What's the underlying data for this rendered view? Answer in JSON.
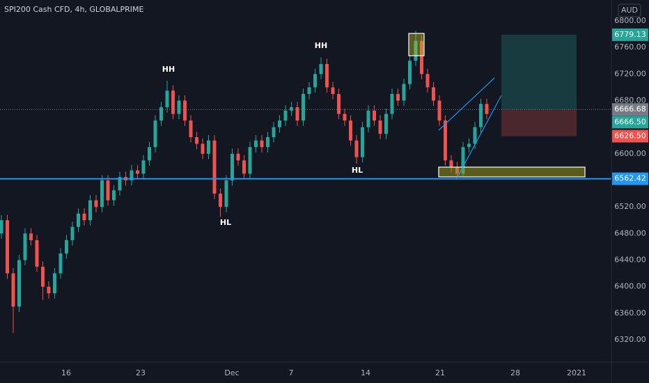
{
  "chart_data": {
    "type": "candlestick",
    "title": "SPI200 Cash CFD, 4h, GLOBALPRIME",
    "currency": "AUD",
    "up_color": "#26a69a",
    "down_color": "#ef5350",
    "open": [
      6480,
      6500,
      6420,
      6370,
      6440,
      6480,
      6470,
      6430,
      6400,
      6390,
      6420,
      6450,
      6470,
      6490,
      6510,
      6500,
      6530,
      6520,
      6560,
      6530,
      6545,
      6565,
      6560,
      6575,
      6570,
      6590,
      6610,
      6650,
      6670,
      6695,
      6660,
      6680,
      6650,
      6625,
      6615,
      6600,
      6620,
      6540,
      6520,
      6560,
      6600,
      6590,
      6570,
      6610,
      6620,
      6610,
      6625,
      6640,
      6650,
      6665,
      6670,
      6650,
      6690,
      6700,
      6720,
      6735,
      6700,
      6690,
      6660,
      6650,
      6620,
      6595,
      6640,
      6665,
      6650,
      6630,
      6660,
      6690,
      6680,
      6705,
      6740,
      6770,
      6720,
      6700,
      6680,
      6650,
      6590,
      6580,
      6570,
      6610,
      6615,
      6640,
      6675
    ],
    "high": [
      6508,
      6508,
      6428,
      6448,
      6488,
      6488,
      6478,
      6438,
      6408,
      6428,
      6458,
      6478,
      6498,
      6518,
      6518,
      6538,
      6538,
      6568,
      6568,
      6553,
      6573,
      6573,
      6583,
      6583,
      6598,
      6618,
      6658,
      6678,
      6710,
      6703,
      6688,
      6688,
      6658,
      6633,
      6623,
      6628,
      6628,
      6548,
      6568,
      6608,
      6608,
      6598,
      6618,
      6628,
      6628,
      6633,
      6648,
      6658,
      6673,
      6678,
      6678,
      6698,
      6708,
      6728,
      6745,
      6743,
      6708,
      6698,
      6668,
      6658,
      6628,
      6648,
      6673,
      6673,
      6658,
      6668,
      6698,
      6698,
      6713,
      6748,
      6785,
      6778,
      6728,
      6708,
      6688,
      6658,
      6598,
      6588,
      6618,
      6623,
      6648,
      6683,
      6683
    ],
    "low": [
      6472,
      6412,
      6330,
      6362,
      6432,
      6462,
      6422,
      6380,
      6382,
      6382,
      6412,
      6442,
      6462,
      6482,
      6492,
      6492,
      6512,
      6512,
      6522,
      6522,
      6537,
      6552,
      6552,
      6562,
      6562,
      6582,
      6602,
      6642,
      6662,
      6652,
      6652,
      6642,
      6617,
      6607,
      6592,
      6592,
      6532,
      6505,
      6512,
      6552,
      6582,
      6562,
      6562,
      6602,
      6602,
      6602,
      6617,
      6632,
      6642,
      6657,
      6642,
      6642,
      6682,
      6692,
      6712,
      6692,
      6682,
      6652,
      6642,
      6612,
      6585,
      6587,
      6632,
      6642,
      6622,
      6622,
      6652,
      6672,
      6672,
      6697,
      6732,
      6712,
      6692,
      6672,
      6642,
      6582,
      6572,
      6565,
      6566,
      6602,
      6607,
      6632,
      6652
    ],
    "close": [
      6500,
      6420,
      6370,
      6440,
      6480,
      6470,
      6430,
      6400,
      6390,
      6420,
      6450,
      6470,
      6490,
      6510,
      6500,
      6530,
      6520,
      6560,
      6530,
      6545,
      6565,
      6560,
      6575,
      6570,
      6590,
      6610,
      6650,
      6670,
      6695,
      6660,
      6680,
      6650,
      6625,
      6615,
      6600,
      6620,
      6540,
      6520,
      6560,
      6600,
      6590,
      6570,
      6610,
      6620,
      6610,
      6625,
      6640,
      6650,
      6665,
      6670,
      6650,
      6690,
      6700,
      6720,
      6735,
      6700,
      6690,
      6660,
      6650,
      6620,
      6595,
      6640,
      6665,
      6650,
      6630,
      6660,
      6690,
      6680,
      6705,
      6740,
      6770,
      6720,
      6700,
      6680,
      6650,
      6590,
      6580,
      6570,
      6610,
      6615,
      6640,
      6675,
      6660
    ],
    "xlim": [
      -0.235,
      103.06
    ],
    "xticks": [
      {
        "value": 10.94,
        "label": "16"
      },
      {
        "value": 23.53,
        "label": "23"
      },
      {
        "value": 38.94,
        "label": "Dec"
      },
      {
        "value": 48.94,
        "label": "7"
      },
      {
        "value": 61.53,
        "label": "14"
      },
      {
        "value": 74.12,
        "label": "21"
      },
      {
        "value": 86.82,
        "label": "28"
      },
      {
        "value": 97.18,
        "label": "2021"
      }
    ],
    "ylim": [
      6286.5,
      6831.4
    ],
    "yticks": [
      {
        "value": 6320,
        "label": "6320.00"
      },
      {
        "value": 6360,
        "label": "6360.00"
      },
      {
        "value": 6400,
        "label": "6400.00"
      },
      {
        "value": 6440,
        "label": "6440.00"
      },
      {
        "value": 6480,
        "label": "6480.00"
      },
      {
        "value": 6520,
        "label": "6520.00"
      },
      {
        "value": 6600,
        "label": "6600.00"
      },
      {
        "value": 6680,
        "label": "6680.00"
      },
      {
        "value": 6720,
        "label": "6720.00"
      },
      {
        "value": 6760,
        "label": "6760.00"
      },
      {
        "value": 6800,
        "label": "6800.00"
      }
    ],
    "grid": true,
    "price_labels": [
      {
        "value": 6779.13,
        "label": "6779.13",
        "color": "#26a69a"
      },
      {
        "value": 6666.68,
        "label": "6666.68",
        "color": "#787b86"
      },
      {
        "value": 6666.5,
        "label": "6666.50",
        "color": "#26a69a"
      },
      {
        "value": 6626.5,
        "label": "6626.50",
        "color": "#ef5350"
      },
      {
        "value": 6562.42,
        "label": "6562.42",
        "color": "#2196f3"
      }
    ],
    "support_level": 6562.42,
    "current_price": 6666.68,
    "position": {
      "target": 6779.13,
      "entry": 6666.5,
      "stop": 6626.5
    },
    "annotations": [
      "HH",
      "HL",
      "HH",
      "HL"
    ]
  }
}
